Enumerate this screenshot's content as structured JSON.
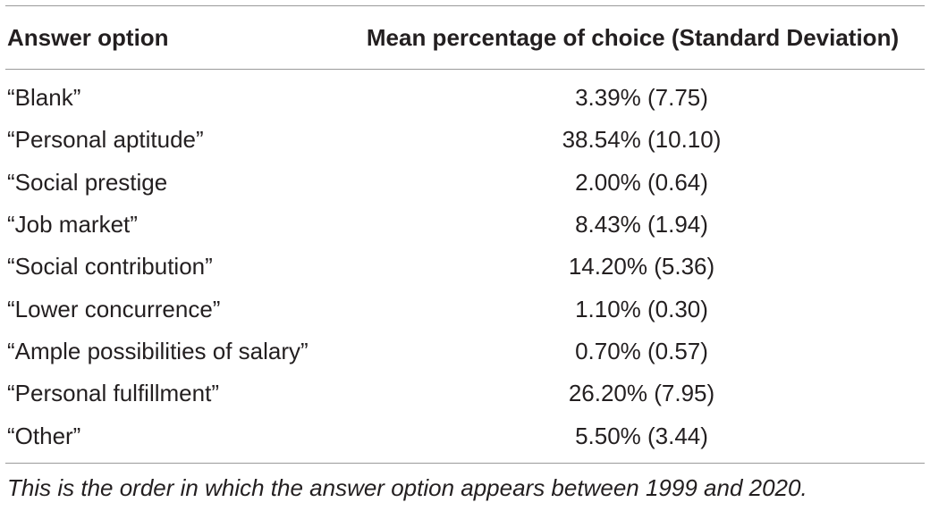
{
  "table": {
    "headers": [
      "Answer option",
      "Mean percentage of choice (Standard Deviation)"
    ],
    "rows": [
      [
        "“Blank”",
        "3.39% (7.75)"
      ],
      [
        "“Personal aptitude”",
        "38.54% (10.10)"
      ],
      [
        "“Social prestige",
        "2.00% (0.64)"
      ],
      [
        "“Job market”",
        "8.43% (1.94)"
      ],
      [
        "“Social contribution”",
        "14.20% (5.36)"
      ],
      [
        "“Lower concurrence”",
        "1.10% (0.30)"
      ],
      [
        "“Ample possibilities of salary”",
        "0.70% (0.57)"
      ],
      [
        "“Personal fulfillment”",
        "26.20% (7.95)"
      ],
      [
        "“Other”",
        "5.50% (3.44)"
      ]
    ],
    "footnote": "This is the order in which the answer option appears between 1999 and 2020."
  }
}
